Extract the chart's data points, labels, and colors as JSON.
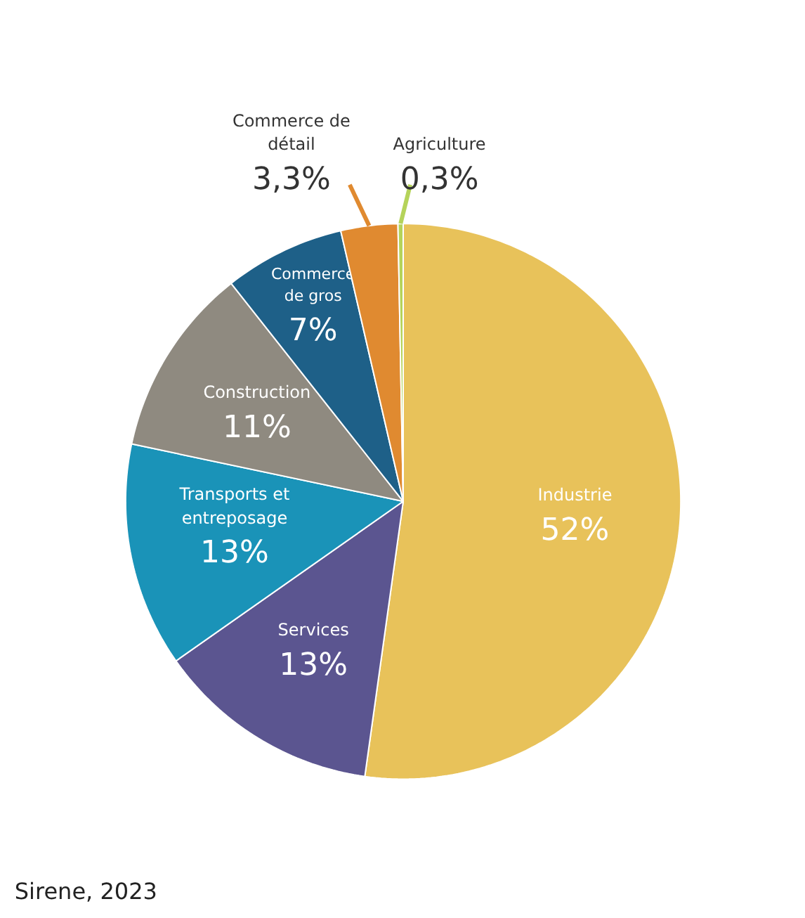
{
  "chart_data": {
    "type": "pie",
    "categories": [
      "Industrie",
      "Services",
      "Transports et entreposage",
      "Construction",
      "Commerce de gros",
      "Commerce de détail",
      "Agriculture"
    ],
    "values": [
      52,
      13,
      13,
      11,
      7,
      3.3,
      0.3
    ],
    "colors": [
      "#e8c25a",
      "#5b5590",
      "#1a93b8",
      "#8f8a80",
      "#1e6088",
      "#e08a30",
      "#b5d35a"
    ],
    "value_labels": [
      "52%",
      "13%",
      "13%",
      "11%",
      "7%",
      "3,3%",
      "0,3%"
    ],
    "annotations": [
      "Sirene, 2023"
    ]
  }
}
